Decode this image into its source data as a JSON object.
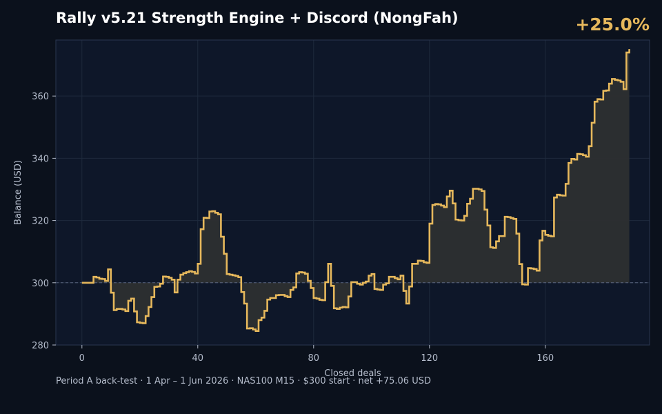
{
  "title": "Rally v5.21 Strength Engine + Discord (NongFah)",
  "headline_return": "+25.0%",
  "footer": "Period A back-test  ·  1 Apr – 1 Jun 2026  ·  NAS100 M15  ·  $300 start  ·  net +75.06 USD",
  "colors": {
    "background": "#0b111c",
    "plot_background": "#0e1729",
    "line": "#e6b85c",
    "fill": "#2d2f30",
    "grid": "#1e2a3d",
    "baseline": "#5a6680",
    "text": "#b4bccb"
  },
  "chart_data": {
    "type": "line",
    "step": true,
    "xlabel": "Closed deals",
    "ylabel": "Balance (USD)",
    "xlim": [
      -9,
      196
    ],
    "ylim": [
      280,
      378
    ],
    "xticks": [
      0,
      40,
      80,
      120,
      160
    ],
    "yticks": [
      280,
      300,
      320,
      340,
      360
    ],
    "grid": true,
    "baseline": 300,
    "fill_to_baseline": true,
    "series": [
      {
        "values": [
          300,
          300,
          300,
          300,
          301.9,
          301.7,
          301.3,
          301.2,
          300.6,
          304.3,
          296.8,
          291.2,
          291.6,
          291.6,
          291.4,
          290.9,
          294.2,
          294.9,
          290.8,
          287.3,
          287.1,
          287.0,
          289.3,
          292.2,
          295.4,
          298.7,
          298.8,
          299.7,
          302.0,
          301.9,
          301.6,
          301.0,
          296.9,
          301.0,
          302.6,
          303.1,
          303.4,
          303.7,
          303.5,
          303.0,
          306.1,
          317.2,
          320.9,
          320.8,
          322.9,
          323.0,
          322.5,
          322.0,
          314.8,
          309.3,
          302.8,
          302.6,
          302.4,
          302.2,
          301.8,
          297.0,
          293.3,
          285.3,
          285.4,
          285.0,
          284.5,
          288.0,
          288.8,
          291.0,
          294.6,
          295.1,
          295.1,
          296.0,
          296.1,
          296.1,
          295.7,
          295.4,
          297.7,
          298.5,
          303.0,
          303.4,
          303.3,
          302.9,
          300.6,
          298.3,
          295.1,
          294.9,
          294.5,
          294.4,
          300.2,
          306.1,
          299.0,
          291.8,
          291.6,
          292.0,
          292.2,
          292.1,
          295.6,
          300.2,
          300.2,
          299.7,
          299.4,
          300.0,
          300.4,
          302.3,
          302.8,
          298.0,
          297.8,
          297.7,
          299.4,
          299.8,
          301.9,
          301.9,
          301.5,
          301.1,
          302.3,
          297.4,
          293.3,
          298.8,
          306.1,
          306.1,
          307.1,
          307.0,
          306.6,
          306.4,
          319.0,
          325.0,
          325.3,
          325.2,
          324.8,
          324.3,
          327.7,
          329.6,
          325.5,
          320.3,
          320.1,
          320.0,
          321.5,
          325.4,
          327.0,
          330.2,
          330.2,
          330.0,
          329.5,
          323.5,
          318.4,
          311.4,
          311.2,
          313.3,
          315.0,
          315.0,
          321.2,
          321.1,
          320.8,
          320.5,
          315.8,
          306.0,
          299.5,
          299.4,
          304.7,
          304.6,
          304.4,
          303.9,
          313.6,
          316.7,
          315.4,
          315.1,
          314.9,
          327.4,
          328.3,
          328.1,
          328.0,
          331.8,
          338.5,
          339.8,
          339.6,
          341.4,
          341.3,
          341.0,
          340.5,
          343.9,
          351.4,
          358.2,
          359.0,
          358.9,
          361.7,
          361.8,
          364.0,
          365.5,
          365.2,
          365.0,
          364.6,
          362.2,
          374.0,
          375.1
        ]
      }
    ]
  }
}
